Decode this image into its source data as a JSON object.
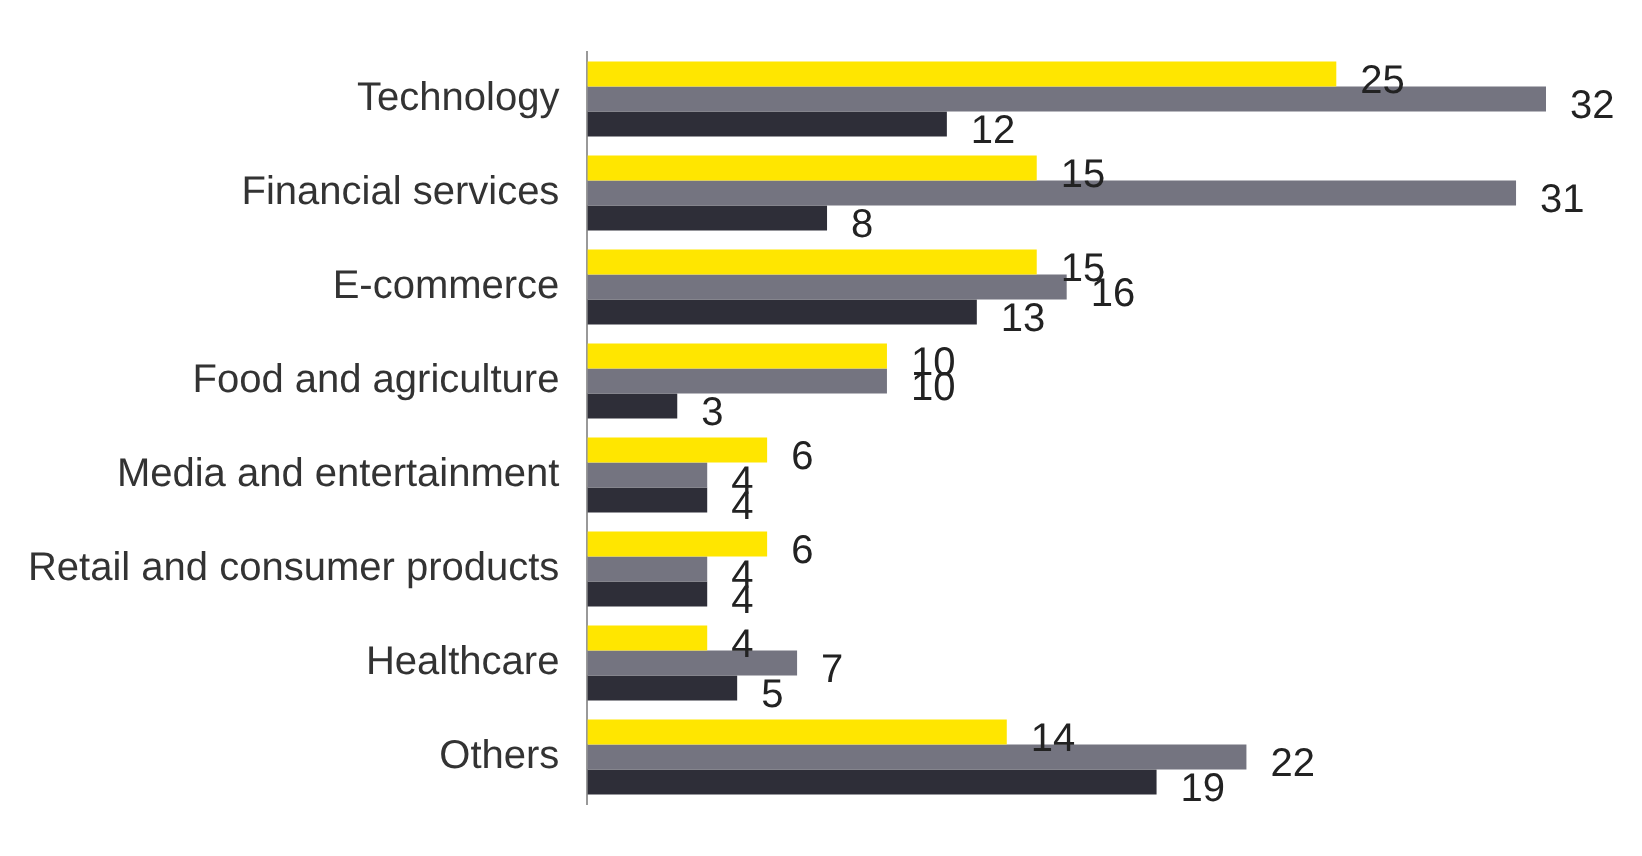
{
  "chart_data": {
    "type": "bar",
    "orientation": "horizontal",
    "categories": [
      "Technology",
      "Financial services",
      "E-commerce",
      "Food and agriculture",
      "Media and entertainment",
      "Retail and consumer products",
      "Healthcare",
      "Others"
    ],
    "series": [
      {
        "color": "#ffe600",
        "values": [
          25,
          15,
          15,
          10,
          6,
          6,
          4,
          14
        ]
      },
      {
        "color": "#747480",
        "values": [
          32,
          31,
          16,
          10,
          4,
          4,
          7,
          22
        ]
      },
      {
        "color": "#2e2e38",
        "values": [
          12,
          8,
          13,
          3,
          4,
          4,
          5,
          19
        ]
      }
    ],
    "xlim": [
      0,
      32
    ],
    "data_labels": true,
    "grid": false,
    "legend": false,
    "tick_labels": "y"
  }
}
